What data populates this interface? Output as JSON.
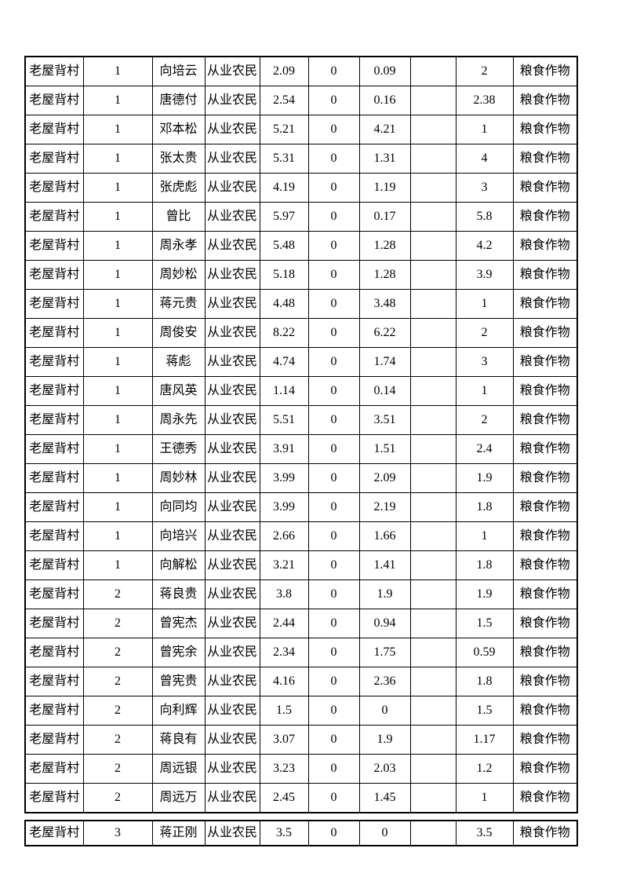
{
  "page": {
    "background_color": "#ffffff",
    "border_color": "#000000",
    "text_color": "#000000"
  },
  "table": {
    "village_label": "老屋背村",
    "occupation_label": "从业农民",
    "crop_type_label": "粮食作物",
    "fragment_1_row_count": 26,
    "fragment_2_row_count": 1,
    "rows": [
      [
        "老屋背村",
        "1",
        "向培云",
        "从业农民",
        "2.09",
        "0",
        "0.09",
        "",
        "2",
        "粮食作物"
      ],
      [
        "老屋背村",
        "1",
        "唐德付",
        "从业农民",
        "2.54",
        "0",
        "0.16",
        "",
        "2.38",
        "粮食作物"
      ],
      [
        "老屋背村",
        "1",
        "邓本松",
        "从业农民",
        "5.21",
        "0",
        "4.21",
        "",
        "1",
        "粮食作物"
      ],
      [
        "老屋背村",
        "1",
        "张太贵",
        "从业农民",
        "5.31",
        "0",
        "1.31",
        "",
        "4",
        "粮食作物"
      ],
      [
        "老屋背村",
        "1",
        "张虎彪",
        "从业农民",
        "4.19",
        "0",
        "1.19",
        "",
        "3",
        "粮食作物"
      ],
      [
        "老屋背村",
        "1",
        "曾比",
        "从业农民",
        "5.97",
        "0",
        "0.17",
        "",
        "5.8",
        "粮食作物"
      ],
      [
        "老屋背村",
        "1",
        "周永孝",
        "从业农民",
        "5.48",
        "0",
        "1.28",
        "",
        "4.2",
        "粮食作物"
      ],
      [
        "老屋背村",
        "1",
        "周妙松",
        "从业农民",
        "5.18",
        "0",
        "1.28",
        "",
        "3.9",
        "粮食作物"
      ],
      [
        "老屋背村",
        "1",
        "蒋元贵",
        "从业农民",
        "4.48",
        "0",
        "3.48",
        "",
        "1",
        "粮食作物"
      ],
      [
        "老屋背村",
        "1",
        "周俊安",
        "从业农民",
        "8.22",
        "0",
        "6.22",
        "",
        "2",
        "粮食作物"
      ],
      [
        "老屋背村",
        "1",
        "蒋彪",
        "从业农民",
        "4.74",
        "0",
        "1.74",
        "",
        "3",
        "粮食作物"
      ],
      [
        "老屋背村",
        "1",
        "唐风英",
        "从业农民",
        "1.14",
        "0",
        "0.14",
        "",
        "1",
        "粮食作物"
      ],
      [
        "老屋背村",
        "1",
        "周永先",
        "从业农民",
        "5.51",
        "0",
        "3.51",
        "",
        "2",
        "粮食作物"
      ],
      [
        "老屋背村",
        "1",
        "王德秀",
        "从业农民",
        "3.91",
        "0",
        "1.51",
        "",
        "2.4",
        "粮食作物"
      ],
      [
        "老屋背村",
        "1",
        "周妙林",
        "从业农民",
        "3.99",
        "0",
        "2.09",
        "",
        "1.9",
        "粮食作物"
      ],
      [
        "老屋背村",
        "1",
        "向同均",
        "从业农民",
        "3.99",
        "0",
        "2.19",
        "",
        "1.8",
        "粮食作物"
      ],
      [
        "老屋背村",
        "1",
        "向培兴",
        "从业农民",
        "2.66",
        "0",
        "1.66",
        "",
        "1",
        "粮食作物"
      ],
      [
        "老屋背村",
        "1",
        "向解松",
        "从业农民",
        "3.21",
        "0",
        "1.41",
        "",
        "1.8",
        "粮食作物"
      ],
      [
        "老屋背村",
        "2",
        "蒋良贵",
        "从业农民",
        "3.8",
        "0",
        "1.9",
        "",
        "1.9",
        "粮食作物"
      ],
      [
        "老屋背村",
        "2",
        "曾宪杰",
        "从业农民",
        "2.44",
        "0",
        "0.94",
        "",
        "1.5",
        "粮食作物"
      ],
      [
        "老屋背村",
        "2",
        "曾宪余",
        "从业农民",
        "2.34",
        "0",
        "1.75",
        "",
        "0.59",
        "粮食作物"
      ],
      [
        "老屋背村",
        "2",
        "曾宪贵",
        "从业农民",
        "4.16",
        "0",
        "2.36",
        "",
        "1.8",
        "粮食作物"
      ],
      [
        "老屋背村",
        "2",
        "向利辉",
        "从业农民",
        "1.5",
        "0",
        "0",
        "",
        "1.5",
        "粮食作物"
      ],
      [
        "老屋背村",
        "2",
        "蒋良有",
        "从业农民",
        "3.07",
        "0",
        "1.9",
        "",
        "1.17",
        "粮食作物"
      ],
      [
        "老屋背村",
        "2",
        "周远银",
        "从业农民",
        "3.23",
        "0",
        "2.03",
        "",
        "1.2",
        "粮食作物"
      ],
      [
        "老屋背村",
        "2",
        "周远万",
        "从业农民",
        "2.45",
        "0",
        "1.45",
        "",
        "1",
        "粮食作物"
      ],
      [
        "老屋背村",
        "3",
        "蒋正刚",
        "从业农民",
        "3.5",
        "0",
        "0",
        "",
        "3.5",
        "粮食作物"
      ]
    ]
  }
}
